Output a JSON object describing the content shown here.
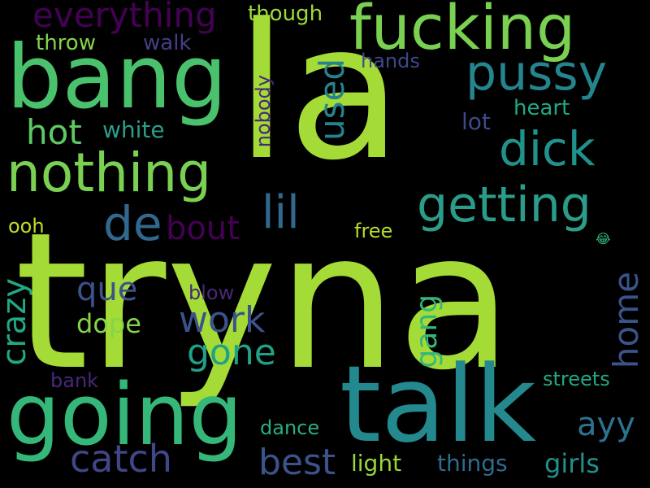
{
  "words": [
    {
      "text": "tryna",
      "color": "#a5db36"
    },
    {
      "text": "la",
      "color": "#a5db36"
    },
    {
      "text": "bang",
      "color": "#4ac16d"
    },
    {
      "text": "talk",
      "color": "#23898e"
    },
    {
      "text": "going",
      "color": "#35b779"
    },
    {
      "text": "fucking",
      "color": "#7ad151"
    },
    {
      "text": "nothing",
      "color": "#7ad151"
    },
    {
      "text": "pussy",
      "color": "#25858e"
    },
    {
      "text": "getting",
      "color": "#2a9d8a"
    },
    {
      "text": "dick",
      "color": "#20928c"
    },
    {
      "text": "everything",
      "color": "#440154"
    },
    {
      "text": "hot",
      "color": "#5ec962"
    },
    {
      "text": "lil",
      "color": "#31688e"
    },
    {
      "text": "de",
      "color": "#31688e"
    },
    {
      "text": "bout",
      "color": "#440154"
    },
    {
      "text": "used",
      "color": "#26828e"
    },
    {
      "text": "que",
      "color": "#3b528b"
    },
    {
      "text": "work",
      "color": "#3b528b"
    },
    {
      "text": "gone",
      "color": "#1fa187"
    },
    {
      "text": "crazy",
      "color": "#22a884"
    },
    {
      "text": "home",
      "color": "#3b528b"
    },
    {
      "text": "catch",
      "color": "#404688"
    },
    {
      "text": "best",
      "color": "#3b528b"
    },
    {
      "text": "gang",
      "color": "#35b779"
    },
    {
      "text": "ayy",
      "color": "#2c728e"
    },
    {
      "text": "throw",
      "color": "#84d44b"
    },
    {
      "text": "walk",
      "color": "#433e85"
    },
    {
      "text": "though",
      "color": "#9fda3a"
    },
    {
      "text": "hands",
      "color": "#3e4989"
    },
    {
      "text": "lot",
      "color": "#3e4989"
    },
    {
      "text": "heart",
      "color": "#22a884"
    },
    {
      "text": "white",
      "color": "#2a9d8a"
    },
    {
      "text": "nobody",
      "color": "#482878"
    },
    {
      "text": "ooh",
      "color": "#bddf26"
    },
    {
      "text": "free",
      "color": "#b5de2b"
    },
    {
      "text": "blow",
      "color": "#482878"
    },
    {
      "text": "dope",
      "color": "#86d549"
    },
    {
      "text": "bank",
      "color": "#482878"
    },
    {
      "text": "streets",
      "color": "#22a884"
    },
    {
      "text": "dance",
      "color": "#29af7f"
    },
    {
      "text": "light",
      "color": "#98d83e"
    },
    {
      "text": "things",
      "color": "#2f6c8e"
    },
    {
      "text": "girls",
      "color": "#21908d"
    },
    {
      "text": "😂",
      "color": "#35b779"
    }
  ]
}
